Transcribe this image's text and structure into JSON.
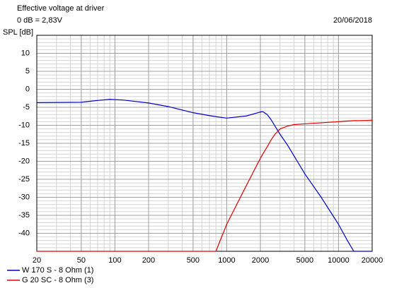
{
  "chart_data": {
    "type": "line",
    "title": "Effective voltage at driver",
    "subtitle": "0 dB = 2,83V",
    "date": "20/06/2018",
    "y_label": "SPL [dB]",
    "x_scale": "log",
    "grid": true,
    "legend": "bottom-left",
    "xlim": [
      20,
      20000
    ],
    "xticks": [
      20,
      50,
      100,
      200,
      500,
      1000,
      2000,
      5000,
      10000,
      20000
    ],
    "ylim": [
      -45,
      15
    ],
    "yticks": [
      10,
      5,
      0,
      -5,
      -10,
      -15,
      -20,
      -25,
      -30,
      -35,
      -40
    ],
    "x": [
      20,
      50,
      70,
      90,
      120,
      200,
      300,
      500,
      700,
      800,
      1000,
      1500,
      1900,
      2000,
      2100,
      2300,
      2500,
      2700,
      3000,
      3500,
      4000,
      5000,
      7000,
      10000,
      12000,
      13700,
      15000,
      20000
    ],
    "series": [
      {
        "name": "W 170 S - 8 Ohm (1)",
        "color": "#0000c8",
        "values": [
          -3.7,
          -3.6,
          -3.1,
          -2.8,
          -3.0,
          -3.8,
          -4.8,
          -6.5,
          -7.3,
          -7.6,
          -8.0,
          -7.4,
          -6.5,
          -6.3,
          -6.2,
          -7.0,
          -8.5,
          -10.2,
          -12.5,
          -15.5,
          -18.5,
          -23.5,
          -30,
          -37.5,
          -42,
          -45,
          -45,
          -45
        ]
      },
      {
        "name": "G 20 SC - 8 Ohm (3)",
        "color": "#e00000",
        "values": [
          -45,
          -45,
          -45,
          -45,
          -45,
          -45,
          -45,
          -45,
          -45,
          -45,
          -37.5,
          -26.7,
          -20.5,
          -19.2,
          -18,
          -16,
          -14,
          -12.5,
          -11,
          -10.2,
          -9.8,
          -9.6,
          -9.3,
          -9.0,
          -8.8,
          -8.7,
          -8.7,
          -8.6
        ]
      }
    ]
  }
}
